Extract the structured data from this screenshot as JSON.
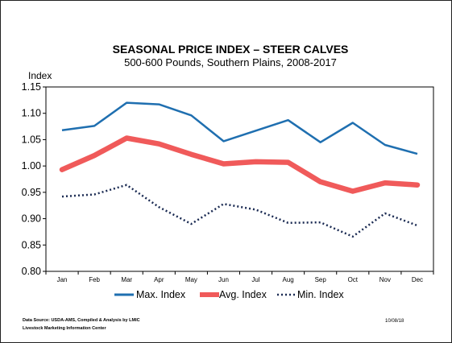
{
  "chart_data": {
    "type": "line",
    "title": "SEASONAL PRICE INDEX – STEER CALVES",
    "subtitle": "500-600 Pounds, Southern Plains, 2008-2017",
    "ylabel": "Index",
    "xlabel": "",
    "ylim": [
      0.8,
      1.15
    ],
    "yticks": [
      "0.80",
      "0.85",
      "0.90",
      "0.95",
      "1.00",
      "1.05",
      "1.10",
      "1.15"
    ],
    "ytick_values": [
      0.8,
      0.85,
      0.9,
      0.95,
      1.0,
      1.05,
      1.1,
      1.15
    ],
    "categories": [
      "Jan",
      "Feb",
      "Mar",
      "Apr",
      "May",
      "Jun",
      "Jul",
      "Aug",
      "Sep",
      "Oct",
      "Nov",
      "Dec"
    ],
    "series": [
      {
        "name": "Max. Index",
        "color": "#1f6fb0",
        "style": "solid-thin",
        "values": [
          1.068,
          1.076,
          1.12,
          1.117,
          1.096,
          1.047,
          1.067,
          1.087,
          1.045,
          1.082,
          1.04,
          1.023
        ]
      },
      {
        "name": "Avg. Index",
        "color": "#f05a5a",
        "style": "solid-thick",
        "values": [
          0.993,
          1.02,
          1.053,
          1.042,
          1.022,
          1.004,
          1.008,
          1.007,
          0.97,
          0.952,
          0.968,
          0.964
        ]
      },
      {
        "name": "Min. Index",
        "color": "#1a2a52",
        "style": "dotted",
        "values": [
          0.942,
          0.946,
          0.964,
          0.922,
          0.89,
          0.928,
          0.917,
          0.892,
          0.893,
          0.866,
          0.91,
          0.887
        ]
      }
    ],
    "grid": false,
    "legend_position": "bottom"
  },
  "footer": {
    "source_line1": "Data Source:  USDA-AMS, Compiled & Analysis by LMIC",
    "source_line2": "Livestock Marketing Information Center",
    "date": "10/08/18"
  }
}
